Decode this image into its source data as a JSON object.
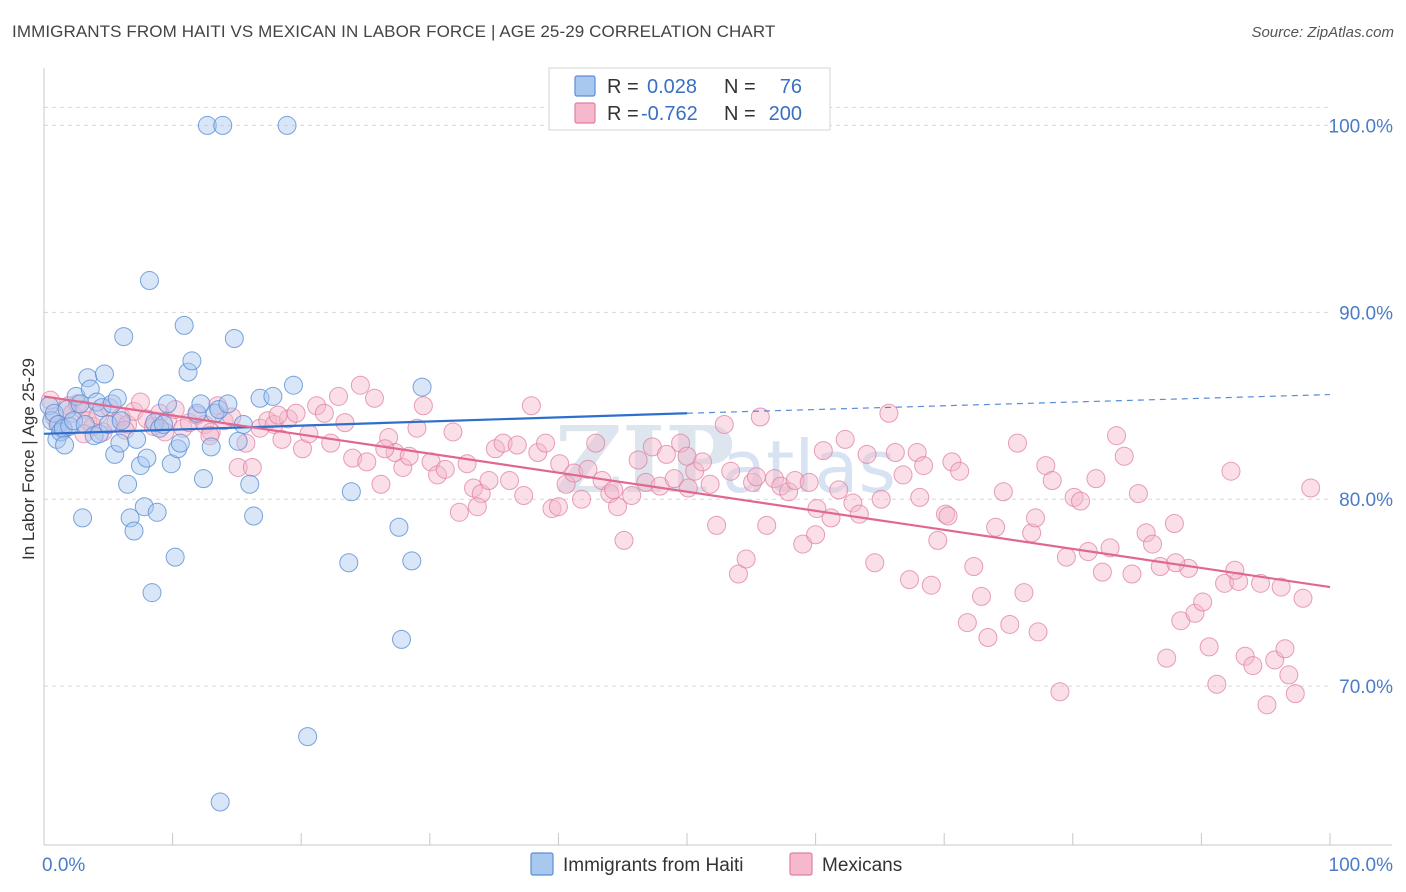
{
  "header": {
    "title": "IMMIGRANTS FROM HAITI VS MEXICAN IN LABOR FORCE | AGE 25-29 CORRELATION CHART",
    "source": "Source: ZipAtlas.com"
  },
  "watermark": {
    "zip": "ZIP",
    "atlas": "atlas"
  },
  "colors": {
    "haiti_fill": "#a8c8f0",
    "haiti_stroke": "#5a8fd6",
    "haiti_line": "#2f6fcc",
    "mexican_fill": "#f5b8cc",
    "mexican_stroke": "#e07fa0",
    "mexican_line": "#e06890",
    "grid": "#d8d8d8",
    "axis_label": "#4a7cc8"
  },
  "legend": {
    "rows": [
      {
        "r_label": "R =",
        "r_value": "0.028",
        "n_label": "N =",
        "n_value": "76"
      },
      {
        "r_label": "R =",
        "r_value": "-0.762",
        "n_label": "N =",
        "n_value": "200"
      }
    ]
  },
  "chart_data": {
    "type": "scatter",
    "title": "IMMIGRANTS FROM HAITI VS MEXICAN IN LABOR FORCE | AGE 25-29 CORRELATION CHART",
    "xlabel": "",
    "ylabel": "In Labor Force | Age 25-29",
    "xlim": [
      0,
      100
    ],
    "ylim": [
      61.5,
      103.5
    ],
    "x_tick_labels": [
      "0.0%",
      "100.0%"
    ],
    "y_ticks": [
      70,
      80,
      90,
      100
    ],
    "y_tick_labels": [
      "70.0%",
      "80.0%",
      "90.0%",
      "100.0%"
    ],
    "grid": true,
    "legend_position": "top-center",
    "series": [
      {
        "name": "Immigrants from Haiti",
        "R": 0.028,
        "N": 76,
        "trend": {
          "x": [
            0,
            50
          ],
          "y": [
            83.5,
            84.6
          ],
          "dashed_to_x": 100,
          "dashed_to_y": 85.6
        },
        "points": [
          [
            0.4,
            85.0
          ],
          [
            0.6,
            84.2
          ],
          [
            0.8,
            84.6
          ],
          [
            1.0,
            83.2
          ],
          [
            1.1,
            84.0
          ],
          [
            1.3,
            83.6
          ],
          [
            1.5,
            83.8
          ],
          [
            1.6,
            82.9
          ],
          [
            1.8,
            84.8
          ],
          [
            2.0,
            83.9
          ],
          [
            2.3,
            84.2
          ],
          [
            2.5,
            85.5
          ],
          [
            2.8,
            85.1
          ],
          [
            3.0,
            79.0
          ],
          [
            3.2,
            84.0
          ],
          [
            3.4,
            86.5
          ],
          [
            3.6,
            85.9
          ],
          [
            3.9,
            83.4
          ],
          [
            4.1,
            85.2
          ],
          [
            4.3,
            83.5
          ],
          [
            4.5,
            84.9
          ],
          [
            4.7,
            86.7
          ],
          [
            5.0,
            84.0
          ],
          [
            5.3,
            85.1
          ],
          [
            5.5,
            82.4
          ],
          [
            5.7,
            85.4
          ],
          [
            5.9,
            83.0
          ],
          [
            6.0,
            84.2
          ],
          [
            6.2,
            88.7
          ],
          [
            6.5,
            80.8
          ],
          [
            6.7,
            79.0
          ],
          [
            7.0,
            78.3
          ],
          [
            7.2,
            83.2
          ],
          [
            7.5,
            81.8
          ],
          [
            7.8,
            79.6
          ],
          [
            8.0,
            82.2
          ],
          [
            8.2,
            91.7
          ],
          [
            8.4,
            75.0
          ],
          [
            8.6,
            84.1
          ],
          [
            8.8,
            79.3
          ],
          [
            9.0,
            83.8
          ],
          [
            9.3,
            84.0
          ],
          [
            9.6,
            85.1
          ],
          [
            9.9,
            81.9
          ],
          [
            10.2,
            76.9
          ],
          [
            10.4,
            82.7
          ],
          [
            10.6,
            83.0
          ],
          [
            10.9,
            89.3
          ],
          [
            11.2,
            86.8
          ],
          [
            11.5,
            87.4
          ],
          [
            11.9,
            84.6
          ],
          [
            12.2,
            85.1
          ],
          [
            12.4,
            81.1
          ],
          [
            12.7,
            100.0
          ],
          [
            13.0,
            82.8
          ],
          [
            13.3,
            84.6
          ],
          [
            13.6,
            84.8
          ],
          [
            13.9,
            100.0
          ],
          [
            14.3,
            85.1
          ],
          [
            14.8,
            88.6
          ],
          [
            15.1,
            83.1
          ],
          [
            15.5,
            84.0
          ],
          [
            16.0,
            80.8
          ],
          [
            16.3,
            79.1
          ],
          [
            16.8,
            85.4
          ],
          [
            17.8,
            85.5
          ],
          [
            18.9,
            100.0
          ],
          [
            19.4,
            86.1
          ],
          [
            20.5,
            67.3
          ],
          [
            23.7,
            76.6
          ],
          [
            23.9,
            80.4
          ],
          [
            27.6,
            78.5
          ],
          [
            27.8,
            72.5
          ],
          [
            28.6,
            76.7
          ],
          [
            29.4,
            86.0
          ],
          [
            13.7,
            63.8
          ]
        ]
      },
      {
        "name": "Mexicans",
        "R": -0.762,
        "N": 200,
        "trend": {
          "x": [
            0,
            100
          ],
          "y": [
            85.5,
            75.3
          ]
        },
        "points": [
          [
            0.5,
            85.3
          ],
          [
            0.8,
            84.4
          ],
          [
            1.2,
            84.0
          ],
          [
            1.5,
            83.7
          ],
          [
            1.9,
            85.0
          ],
          [
            2.2,
            84.6
          ],
          [
            2.6,
            85.1
          ],
          [
            3.0,
            84.8
          ],
          [
            3.4,
            84.2
          ],
          [
            3.8,
            83.9
          ],
          [
            4.2,
            84.5
          ],
          [
            4.6,
            83.6
          ],
          [
            5.1,
            84.9
          ],
          [
            5.6,
            84.1
          ],
          [
            6.0,
            84.4
          ],
          [
            6.5,
            84.0
          ],
          [
            7.0,
            84.7
          ],
          [
            7.5,
            85.2
          ],
          [
            8.0,
            84.3
          ],
          [
            8.5,
            83.9
          ],
          [
            9.0,
            84.6
          ],
          [
            9.6,
            84.2
          ],
          [
            10.2,
            84.8
          ],
          [
            10.8,
            83.8
          ],
          [
            11.3,
            84.1
          ],
          [
            11.9,
            84.5
          ],
          [
            12.5,
            84.0
          ],
          [
            13.0,
            83.6
          ],
          [
            13.5,
            85.0
          ],
          [
            14.0,
            84.2
          ],
          [
            14.6,
            84.4
          ],
          [
            15.1,
            81.7
          ],
          [
            15.7,
            83.0
          ],
          [
            16.2,
            81.7
          ],
          [
            16.8,
            83.8
          ],
          [
            17.4,
            84.2
          ],
          [
            17.9,
            84.0
          ],
          [
            18.5,
            83.2
          ],
          [
            19.0,
            84.3
          ],
          [
            19.6,
            84.6
          ],
          [
            20.1,
            82.7
          ],
          [
            20.6,
            83.5
          ],
          [
            21.2,
            85.0
          ],
          [
            21.8,
            84.6
          ],
          [
            22.3,
            83.0
          ],
          [
            22.9,
            85.5
          ],
          [
            23.4,
            84.1
          ],
          [
            24.0,
            82.2
          ],
          [
            24.6,
            86.1
          ],
          [
            25.1,
            82.0
          ],
          [
            25.7,
            85.4
          ],
          [
            26.2,
            80.8
          ],
          [
            26.8,
            83.3
          ],
          [
            27.3,
            82.5
          ],
          [
            27.9,
            81.7
          ],
          [
            28.4,
            82.3
          ],
          [
            29.0,
            83.8
          ],
          [
            29.5,
            85.0
          ],
          [
            30.1,
            82.0
          ],
          [
            30.6,
            81.3
          ],
          [
            31.2,
            81.6
          ],
          [
            31.8,
            83.6
          ],
          [
            32.3,
            79.3
          ],
          [
            32.9,
            81.9
          ],
          [
            33.4,
            80.6
          ],
          [
            34.0,
            80.3
          ],
          [
            34.6,
            81.0
          ],
          [
            35.1,
            82.7
          ],
          [
            35.7,
            83.0
          ],
          [
            36.2,
            81.0
          ],
          [
            36.8,
            82.9
          ],
          [
            37.3,
            80.2
          ],
          [
            37.9,
            85.0
          ],
          [
            38.4,
            82.5
          ],
          [
            39.0,
            83.0
          ],
          [
            39.5,
            79.5
          ],
          [
            40.1,
            81.9
          ],
          [
            40.6,
            80.8
          ],
          [
            41.2,
            81.4
          ],
          [
            41.8,
            80.0
          ],
          [
            42.3,
            81.6
          ],
          [
            42.9,
            83.0
          ],
          [
            43.4,
            81.0
          ],
          [
            44.0,
            80.3
          ],
          [
            44.6,
            79.6
          ],
          [
            45.1,
            77.8
          ],
          [
            45.7,
            80.2
          ],
          [
            46.2,
            82.1
          ],
          [
            46.8,
            80.9
          ],
          [
            47.3,
            82.8
          ],
          [
            47.9,
            80.7
          ],
          [
            48.4,
            82.4
          ],
          [
            49.0,
            81.1
          ],
          [
            49.5,
            83.0
          ],
          [
            50.1,
            80.6
          ],
          [
            50.6,
            81.5
          ],
          [
            51.2,
            82.0
          ],
          [
            51.8,
            80.8
          ],
          [
            52.3,
            78.6
          ],
          [
            52.9,
            84.0
          ],
          [
            53.4,
            81.5
          ],
          [
            54.0,
            76.0
          ],
          [
            54.6,
            76.8
          ],
          [
            55.1,
            80.9
          ],
          [
            55.7,
            84.4
          ],
          [
            56.2,
            78.6
          ],
          [
            56.8,
            81.1
          ],
          [
            57.3,
            80.7
          ],
          [
            57.9,
            80.4
          ],
          [
            58.4,
            81.0
          ],
          [
            59.0,
            77.6
          ],
          [
            59.5,
            80.9
          ],
          [
            60.1,
            79.5
          ],
          [
            60.6,
            82.6
          ],
          [
            61.2,
            79.0
          ],
          [
            61.8,
            80.5
          ],
          [
            62.3,
            83.2
          ],
          [
            62.9,
            79.8
          ],
          [
            63.4,
            79.2
          ],
          [
            64.0,
            82.4
          ],
          [
            64.6,
            76.6
          ],
          [
            65.1,
            80.0
          ],
          [
            65.7,
            84.6
          ],
          [
            66.2,
            82.5
          ],
          [
            66.8,
            81.3
          ],
          [
            67.3,
            75.7
          ],
          [
            67.9,
            82.5
          ],
          [
            68.4,
            81.8
          ],
          [
            69.0,
            75.4
          ],
          [
            69.5,
            77.8
          ],
          [
            70.1,
            79.2
          ],
          [
            70.6,
            82.0
          ],
          [
            71.2,
            81.5
          ],
          [
            71.8,
            73.4
          ],
          [
            72.3,
            76.4
          ],
          [
            72.9,
            74.8
          ],
          [
            73.4,
            72.6
          ],
          [
            74.0,
            78.5
          ],
          [
            74.6,
            80.4
          ],
          [
            75.1,
            73.3
          ],
          [
            75.7,
            83.0
          ],
          [
            76.2,
            75.0
          ],
          [
            76.8,
            78.2
          ],
          [
            77.3,
            72.9
          ],
          [
            77.9,
            81.8
          ],
          [
            78.4,
            81.0
          ],
          [
            79.0,
            69.7
          ],
          [
            79.5,
            76.9
          ],
          [
            80.1,
            80.1
          ],
          [
            80.6,
            79.9
          ],
          [
            81.2,
            77.2
          ],
          [
            81.8,
            81.1
          ],
          [
            82.3,
            76.1
          ],
          [
            82.9,
            77.4
          ],
          [
            83.4,
            83.4
          ],
          [
            84.0,
            82.3
          ],
          [
            84.6,
            76.0
          ],
          [
            85.1,
            80.3
          ],
          [
            85.7,
            78.2
          ],
          [
            86.2,
            77.6
          ],
          [
            86.8,
            76.4
          ],
          [
            87.3,
            71.5
          ],
          [
            87.9,
            78.7
          ],
          [
            88.4,
            73.5
          ],
          [
            89.0,
            76.3
          ],
          [
            89.5,
            73.9
          ],
          [
            90.1,
            74.5
          ],
          [
            90.6,
            72.1
          ],
          [
            91.2,
            70.1
          ],
          [
            91.8,
            75.5
          ],
          [
            92.3,
            81.5
          ],
          [
            92.9,
            75.6
          ],
          [
            93.4,
            71.6
          ],
          [
            94.0,
            71.1
          ],
          [
            94.6,
            75.5
          ],
          [
            95.1,
            69.0
          ],
          [
            95.7,
            71.4
          ],
          [
            96.2,
            75.3
          ],
          [
            96.8,
            70.6
          ],
          [
            97.3,
            69.6
          ],
          [
            97.9,
            74.7
          ],
          [
            98.5,
            80.6
          ],
          [
            3.1,
            83.5
          ],
          [
            6.3,
            83.7
          ],
          [
            9.4,
            83.6
          ],
          [
            12.9,
            83.4
          ],
          [
            18.2,
            84.5
          ],
          [
            26.5,
            82.7
          ],
          [
            33.7,
            79.6
          ],
          [
            44.3,
            80.5
          ],
          [
            55.4,
            81.2
          ],
          [
            68.1,
            80.1
          ],
          [
            77.1,
            79.0
          ],
          [
            88.0,
            76.6
          ],
          [
            92.6,
            76.2
          ],
          [
            96.5,
            72.0
          ],
          [
            50.0,
            82.3
          ],
          [
            40.0,
            79.6
          ],
          [
            60.0,
            78.1
          ],
          [
            70.3,
            79.1
          ]
        ]
      }
    ]
  },
  "bottom_legend": {
    "items": [
      {
        "label": "Immigrants from Haiti"
      },
      {
        "label": "Mexicans"
      }
    ]
  }
}
